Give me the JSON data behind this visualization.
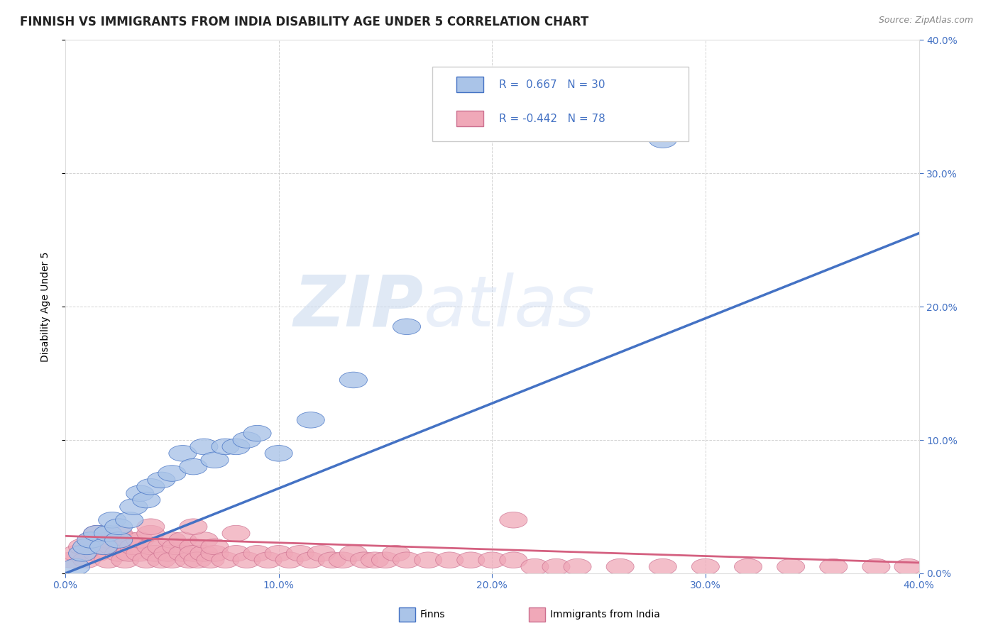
{
  "title": "FINNISH VS IMMIGRANTS FROM INDIA DISABILITY AGE UNDER 5 CORRELATION CHART",
  "source": "Source: ZipAtlas.com",
  "ylabel": "Disability Age Under 5",
  "xlim": [
    0.0,
    0.4
  ],
  "ylim": [
    0.0,
    0.4
  ],
  "color_finns": "#aac4e8",
  "color_india": "#f0a8b8",
  "color_line_finns": "#4472c4",
  "color_line_india": "#d46080",
  "watermark_zip": "ZIP",
  "watermark_atlas": "atlas",
  "background_color": "#ffffff",
  "grid_color": "#c8c8c8",
  "tick_color": "#4472c4",
  "finns_x": [
    0.005,
    0.008,
    0.01,
    0.012,
    0.015,
    0.018,
    0.02,
    0.022,
    0.025,
    0.025,
    0.03,
    0.032,
    0.035,
    0.038,
    0.04,
    0.045,
    0.05,
    0.055,
    0.06,
    0.065,
    0.07,
    0.075,
    0.08,
    0.085,
    0.09,
    0.1,
    0.115,
    0.135,
    0.16,
    0.28
  ],
  "finns_y": [
    0.005,
    0.015,
    0.02,
    0.025,
    0.03,
    0.02,
    0.03,
    0.04,
    0.025,
    0.035,
    0.04,
    0.05,
    0.06,
    0.055,
    0.065,
    0.07,
    0.075,
    0.09,
    0.08,
    0.095,
    0.085,
    0.095,
    0.095,
    0.1,
    0.105,
    0.09,
    0.115,
    0.145,
    0.185,
    0.325
  ],
  "india_x": [
    0.003,
    0.005,
    0.008,
    0.01,
    0.012,
    0.015,
    0.015,
    0.018,
    0.02,
    0.02,
    0.022,
    0.025,
    0.025,
    0.028,
    0.03,
    0.03,
    0.032,
    0.035,
    0.035,
    0.038,
    0.04,
    0.04,
    0.042,
    0.045,
    0.045,
    0.048,
    0.05,
    0.05,
    0.052,
    0.055,
    0.055,
    0.058,
    0.06,
    0.06,
    0.062,
    0.065,
    0.065,
    0.068,
    0.07,
    0.07,
    0.075,
    0.08,
    0.085,
    0.09,
    0.095,
    0.1,
    0.105,
    0.11,
    0.115,
    0.12,
    0.125,
    0.13,
    0.135,
    0.14,
    0.145,
    0.15,
    0.155,
    0.16,
    0.17,
    0.18,
    0.19,
    0.2,
    0.21,
    0.22,
    0.23,
    0.24,
    0.26,
    0.28,
    0.3,
    0.32,
    0.34,
    0.36,
    0.38,
    0.395,
    0.21,
    0.04,
    0.06,
    0.08
  ],
  "india_y": [
    0.01,
    0.015,
    0.02,
    0.01,
    0.025,
    0.015,
    0.03,
    0.02,
    0.01,
    0.025,
    0.02,
    0.015,
    0.03,
    0.01,
    0.015,
    0.025,
    0.02,
    0.015,
    0.025,
    0.01,
    0.02,
    0.03,
    0.015,
    0.02,
    0.01,
    0.015,
    0.025,
    0.01,
    0.02,
    0.015,
    0.025,
    0.01,
    0.02,
    0.015,
    0.01,
    0.015,
    0.025,
    0.01,
    0.015,
    0.02,
    0.01,
    0.015,
    0.01,
    0.015,
    0.01,
    0.015,
    0.01,
    0.015,
    0.01,
    0.015,
    0.01,
    0.01,
    0.015,
    0.01,
    0.01,
    0.01,
    0.015,
    0.01,
    0.01,
    0.01,
    0.01,
    0.01,
    0.01,
    0.005,
    0.005,
    0.005,
    0.005,
    0.005,
    0.005,
    0.005,
    0.005,
    0.005,
    0.005,
    0.005,
    0.04,
    0.035,
    0.035,
    0.03
  ],
  "finns_line_x": [
    0.0,
    0.4
  ],
  "finns_line_y": [
    0.0,
    0.255
  ],
  "india_line_x": [
    0.0,
    0.4
  ],
  "india_line_y": [
    0.028,
    0.008
  ],
  "title_fontsize": 12,
  "axis_label_fontsize": 10,
  "tick_fontsize": 10,
  "legend_fontsize": 11
}
